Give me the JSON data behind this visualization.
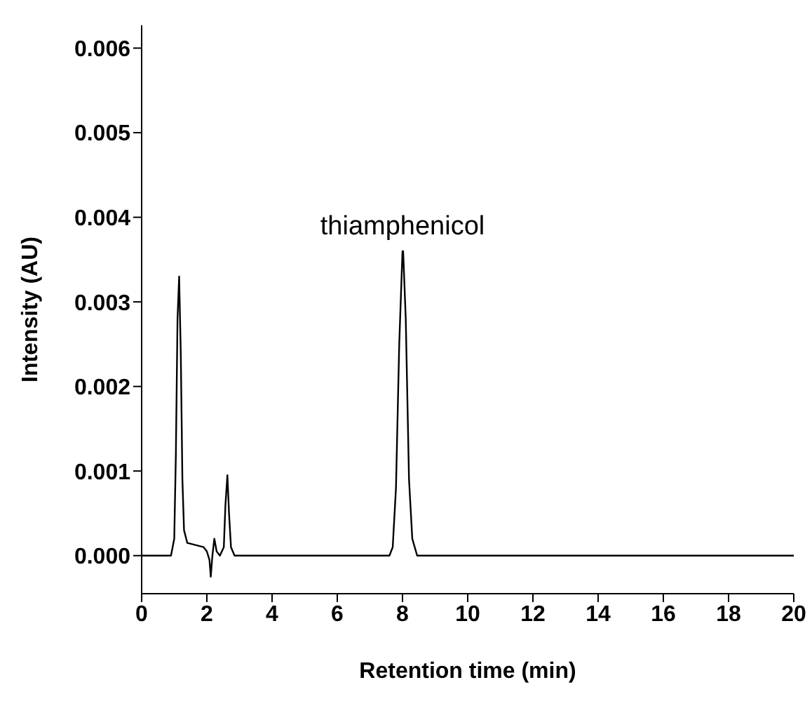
{
  "chart_data": {
    "type": "line",
    "xlabel": "Retention time (min)",
    "ylabel": "Intensity  (AU)",
    "annotations": [
      {
        "text": "thiamphenicol",
        "x": 8,
        "y": 0.0036
      }
    ],
    "xlim": [
      0,
      20
    ],
    "xticks": [
      0,
      2,
      4,
      6,
      8,
      10,
      12,
      14,
      16,
      18,
      20
    ],
    "ylim": [
      -0.00045,
      0.00627
    ],
    "yticks": [
      {
        "value": 0,
        "label": "0.000"
      },
      0.001,
      0.002,
      0.003,
      0.004,
      0.005,
      0.006
    ],
    "grid": false,
    "marker": "none",
    "line_style": "solid",
    "series": [
      {
        "color": "#000000",
        "x": [
          0,
          0.9,
          1.0,
          1.05,
          1.1,
          1.15,
          1.2,
          1.25,
          1.3,
          1.4,
          1.9,
          2.0,
          2.08,
          2.12,
          2.17,
          2.23,
          2.3,
          2.4,
          2.52,
          2.57,
          2.63,
          2.68,
          2.74,
          2.85,
          7.6,
          7.7,
          7.8,
          7.9,
          8.0,
          8.02,
          8.1,
          8.2,
          8.3,
          8.45,
          20.0
        ],
        "values": [
          0,
          0,
          0.0002,
          0.0012,
          0.0028,
          0.0033,
          0.0024,
          0.0009,
          0.0003,
          0.00015,
          0.0001,
          5e-05,
          -5e-05,
          -0.00025,
          0,
          0.0002,
          5e-05,
          0,
          0.0001,
          0.0006,
          0.00095,
          0.0005,
          0.0001,
          0,
          0,
          0.0001,
          0.0008,
          0.0025,
          0.0036,
          0.0036,
          0.0028,
          0.0009,
          0.0002,
          0,
          0
        ]
      }
    ]
  }
}
